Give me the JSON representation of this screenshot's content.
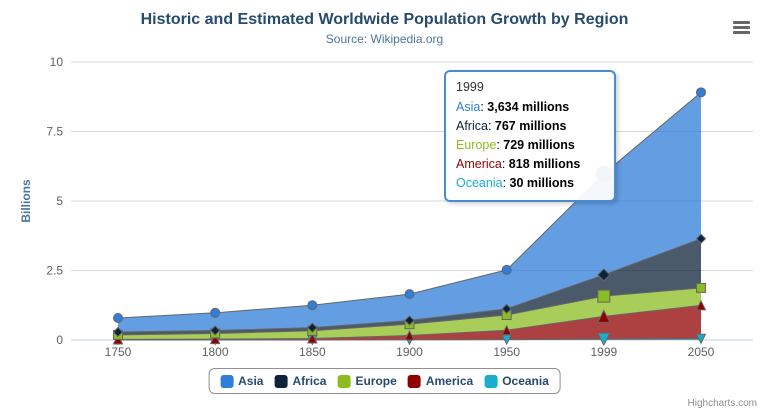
{
  "title": "Historic and Estimated Worldwide Population Growth by Region",
  "subtitle": "Source: Wikipedia.org",
  "credits": "Highcharts.com",
  "chart_data": {
    "type": "area",
    "stacking": "normal",
    "title": "Historic and Estimated Worldwide Population Growth by Region",
    "subtitle": "Source: Wikipedia.org",
    "categories": [
      "1750",
      "1800",
      "1850",
      "1900",
      "1950",
      "1999",
      "2050"
    ],
    "series": [
      {
        "name": "Asia",
        "color": "#2f7ed8",
        "marker": "circle",
        "values": [
          502,
          635,
          809,
          947,
          1402,
          3634,
          5268
        ]
      },
      {
        "name": "Africa",
        "color": "#0d233a",
        "marker": "diamond",
        "values": [
          106,
          107,
          111,
          133,
          221,
          767,
          1766
        ]
      },
      {
        "name": "Europe",
        "color": "#8bbc21",
        "marker": "square",
        "values": [
          163,
          203,
          276,
          408,
          547,
          729,
          628
        ]
      },
      {
        "name": "America",
        "color": "#910000",
        "marker": "triangle",
        "values": [
          18,
          31,
          54,
          156,
          339,
          818,
          1201
        ]
      },
      {
        "name": "Oceania",
        "color": "#1aadce",
        "marker": "triangle-down",
        "values": [
          2,
          2,
          2,
          6,
          13,
          30,
          46
        ]
      }
    ],
    "stack_order_bottom_to_top": [
      "Oceania",
      "America",
      "Europe",
      "Africa",
      "Asia"
    ],
    "units": "millions",
    "ylabel": "Billions",
    "xlabel": "",
    "ylim": [
      0,
      10
    ],
    "yticks": [
      0,
      2.5,
      5,
      7.5,
      10
    ],
    "ytick_labels": [
      "0",
      "2.5",
      "5",
      "7.5",
      "10"
    ],
    "grid": "horizontal",
    "legend_position": "bottom",
    "line_color": "#666666",
    "fill_opacity": 0.75,
    "gridline_color": "#d8d8d8",
    "axis_line_color": "#c0d0e0",
    "axis_label_color": "#606060",
    "hovered_category": "1999"
  },
  "tooltip": {
    "header": "1999",
    "border_color": "#4a8bd0",
    "rows": [
      {
        "label": "Asia",
        "color": "#2f7ed8",
        "value": "3,634 millions"
      },
      {
        "label": "Africa",
        "color": "#0d233a",
        "value": "767 millions"
      },
      {
        "label": "Europe",
        "color": "#8bbc21",
        "value": "729 millions"
      },
      {
        "label": "America",
        "color": "#910000",
        "value": "818 millions"
      },
      {
        "label": "Oceania",
        "color": "#1aadce",
        "value": "30 millions"
      }
    ]
  },
  "legend": {
    "items": [
      {
        "label": "Asia",
        "color": "#2f7ed8"
      },
      {
        "label": "Africa",
        "color": "#0d233a"
      },
      {
        "label": "Europe",
        "color": "#8bbc21"
      },
      {
        "label": "America",
        "color": "#910000"
      },
      {
        "label": "Oceania",
        "color": "#1aadce"
      }
    ]
  },
  "icons": {
    "context_menu": "hamburger-icon"
  }
}
